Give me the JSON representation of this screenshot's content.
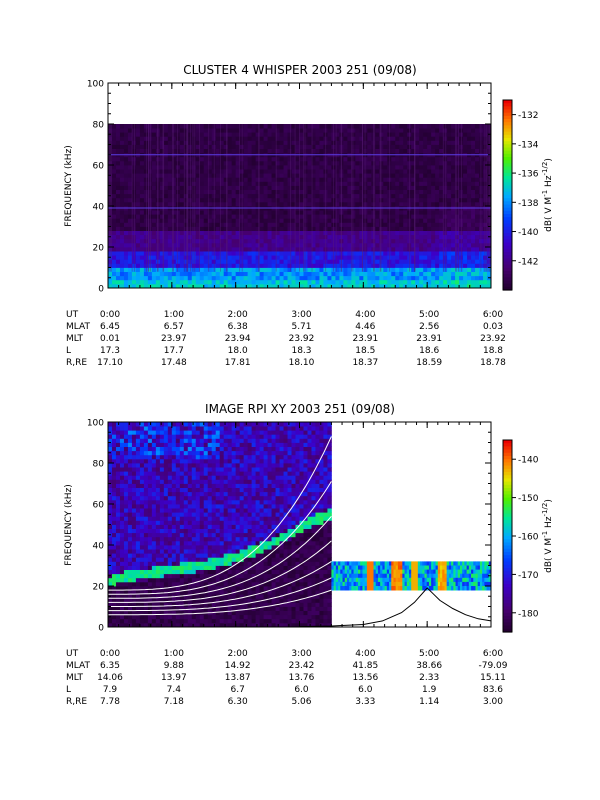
{
  "chart_data": [
    {
      "type": "heatmap",
      "title": "CLUSTER 4 WHISPER 2003 251 (09/08)",
      "ylabel": "FREQUENCY (kHz)",
      "ylim": [
        0,
        100
      ],
      "y_ticks": [
        "0",
        "20",
        "40",
        "60",
        "80",
        "100"
      ],
      "data_max_frequency_khz": 80,
      "colorbar": {
        "label_parts": [
          "dB( V M",
          "-1",
          " Hz",
          "-1/2",
          ")"
        ],
        "range": [
          -144,
          -131
        ],
        "ticks": [
          -132,
          -134,
          -136,
          -138,
          -140,
          -142
        ]
      },
      "orbit_table": {
        "labels": [
          "UT",
          "MLAT",
          "MLT",
          "L",
          "R,RE"
        ],
        "rows": [
          [
            "0:00",
            "1:00",
            "2:00",
            "3:00",
            "4:00",
            "5:00",
            "6:00"
          ],
          [
            "6.45",
            "6.57",
            "6.38",
            "5.71",
            "4.46",
            "2.56",
            "0.03"
          ],
          [
            "0.01",
            "23.97",
            "23.94",
            "23.92",
            "23.91",
            "23.91",
            "23.92"
          ],
          [
            "17.3",
            "17.7",
            "18.0",
            "18.3",
            "18.5",
            "18.6",
            "18.8"
          ],
          [
            "17.10",
            "17.48",
            "17.81",
            "18.10",
            "18.37",
            "18.59",
            "18.78"
          ]
        ]
      },
      "horizontal_lines_khz": [
        65,
        39
      ]
    },
    {
      "type": "heatmap",
      "title": "IMAGE RPI XY 2003 251 (09/08)",
      "ylabel": "FREQUENCY (kHz)",
      "ylim": [
        0,
        100
      ],
      "y_ticks": [
        "0",
        "20",
        "40",
        "60",
        "80",
        "100"
      ],
      "coverage": [
        {
          "start_hr": 0.0,
          "end_hr": 3.5,
          "freq_khz": [
            0,
            100
          ]
        },
        {
          "start_hr": 3.5,
          "end_hr": 6.0,
          "freq_khz": [
            18,
            32
          ]
        }
      ],
      "resonance_band": {
        "x_hr": [
          0.0,
          0.3,
          0.6,
          1.0,
          1.5,
          2.0,
          2.5,
          3.0,
          3.3,
          3.5
        ],
        "y_khz": [
          22,
          25,
          26,
          28,
          30,
          34,
          40,
          48,
          53,
          55
        ]
      },
      "model_curves": [
        {
          "base_khz": 6,
          "amp_khz": 12
        },
        {
          "base_khz": 8,
          "amp_khz": 16
        },
        {
          "base_khz": 10,
          "amp_khz": 22
        },
        {
          "base_khz": 12,
          "amp_khz": 30
        },
        {
          "base_khz": 14,
          "amp_khz": 40
        },
        {
          "base_khz": 16,
          "amp_khz": 55
        },
        {
          "base_khz": 18,
          "amp_khz": 75
        }
      ],
      "peak_curve": {
        "x_hr": [
          3.0,
          3.5,
          4.0,
          4.3,
          4.6,
          4.8,
          5.0,
          5.1,
          5.2,
          5.4,
          5.6,
          5.8,
          6.0
        ],
        "y_khz": [
          0.2,
          0.5,
          1.2,
          3,
          7,
          12,
          19,
          16,
          13,
          9,
          6,
          4,
          3
        ]
      },
      "colorbar": {
        "label_parts": [
          "dB( V M",
          "-1",
          " Hz",
          "-1/2",
          ")"
        ],
        "range": [
          -185,
          -135
        ],
        "ticks": [
          -140,
          -150,
          -160,
          -170,
          -180
        ]
      },
      "orbit_table": {
        "labels": [
          "UT",
          "MLAT",
          "MLT",
          "L",
          "R,RE"
        ],
        "rows": [
          [
            "0:00",
            "1:00",
            "2:00",
            "3:00",
            "4:00",
            "5:00",
            "6:00"
          ],
          [
            "6.35",
            "9.88",
            "14.92",
            "23.42",
            "41.85",
            "38.66",
            "-79.09"
          ],
          [
            "14.06",
            "13.97",
            "13.87",
            "13.76",
            "13.56",
            "2.33",
            "15.11"
          ],
          [
            "7.9",
            "7.4",
            "6.7",
            "6.0",
            "6.0",
            "1.9",
            "83.6"
          ],
          [
            "7.78",
            "7.18",
            "6.30",
            "5.06",
            "3.33",
            "1.14",
            "3.00"
          ]
        ]
      }
    }
  ]
}
